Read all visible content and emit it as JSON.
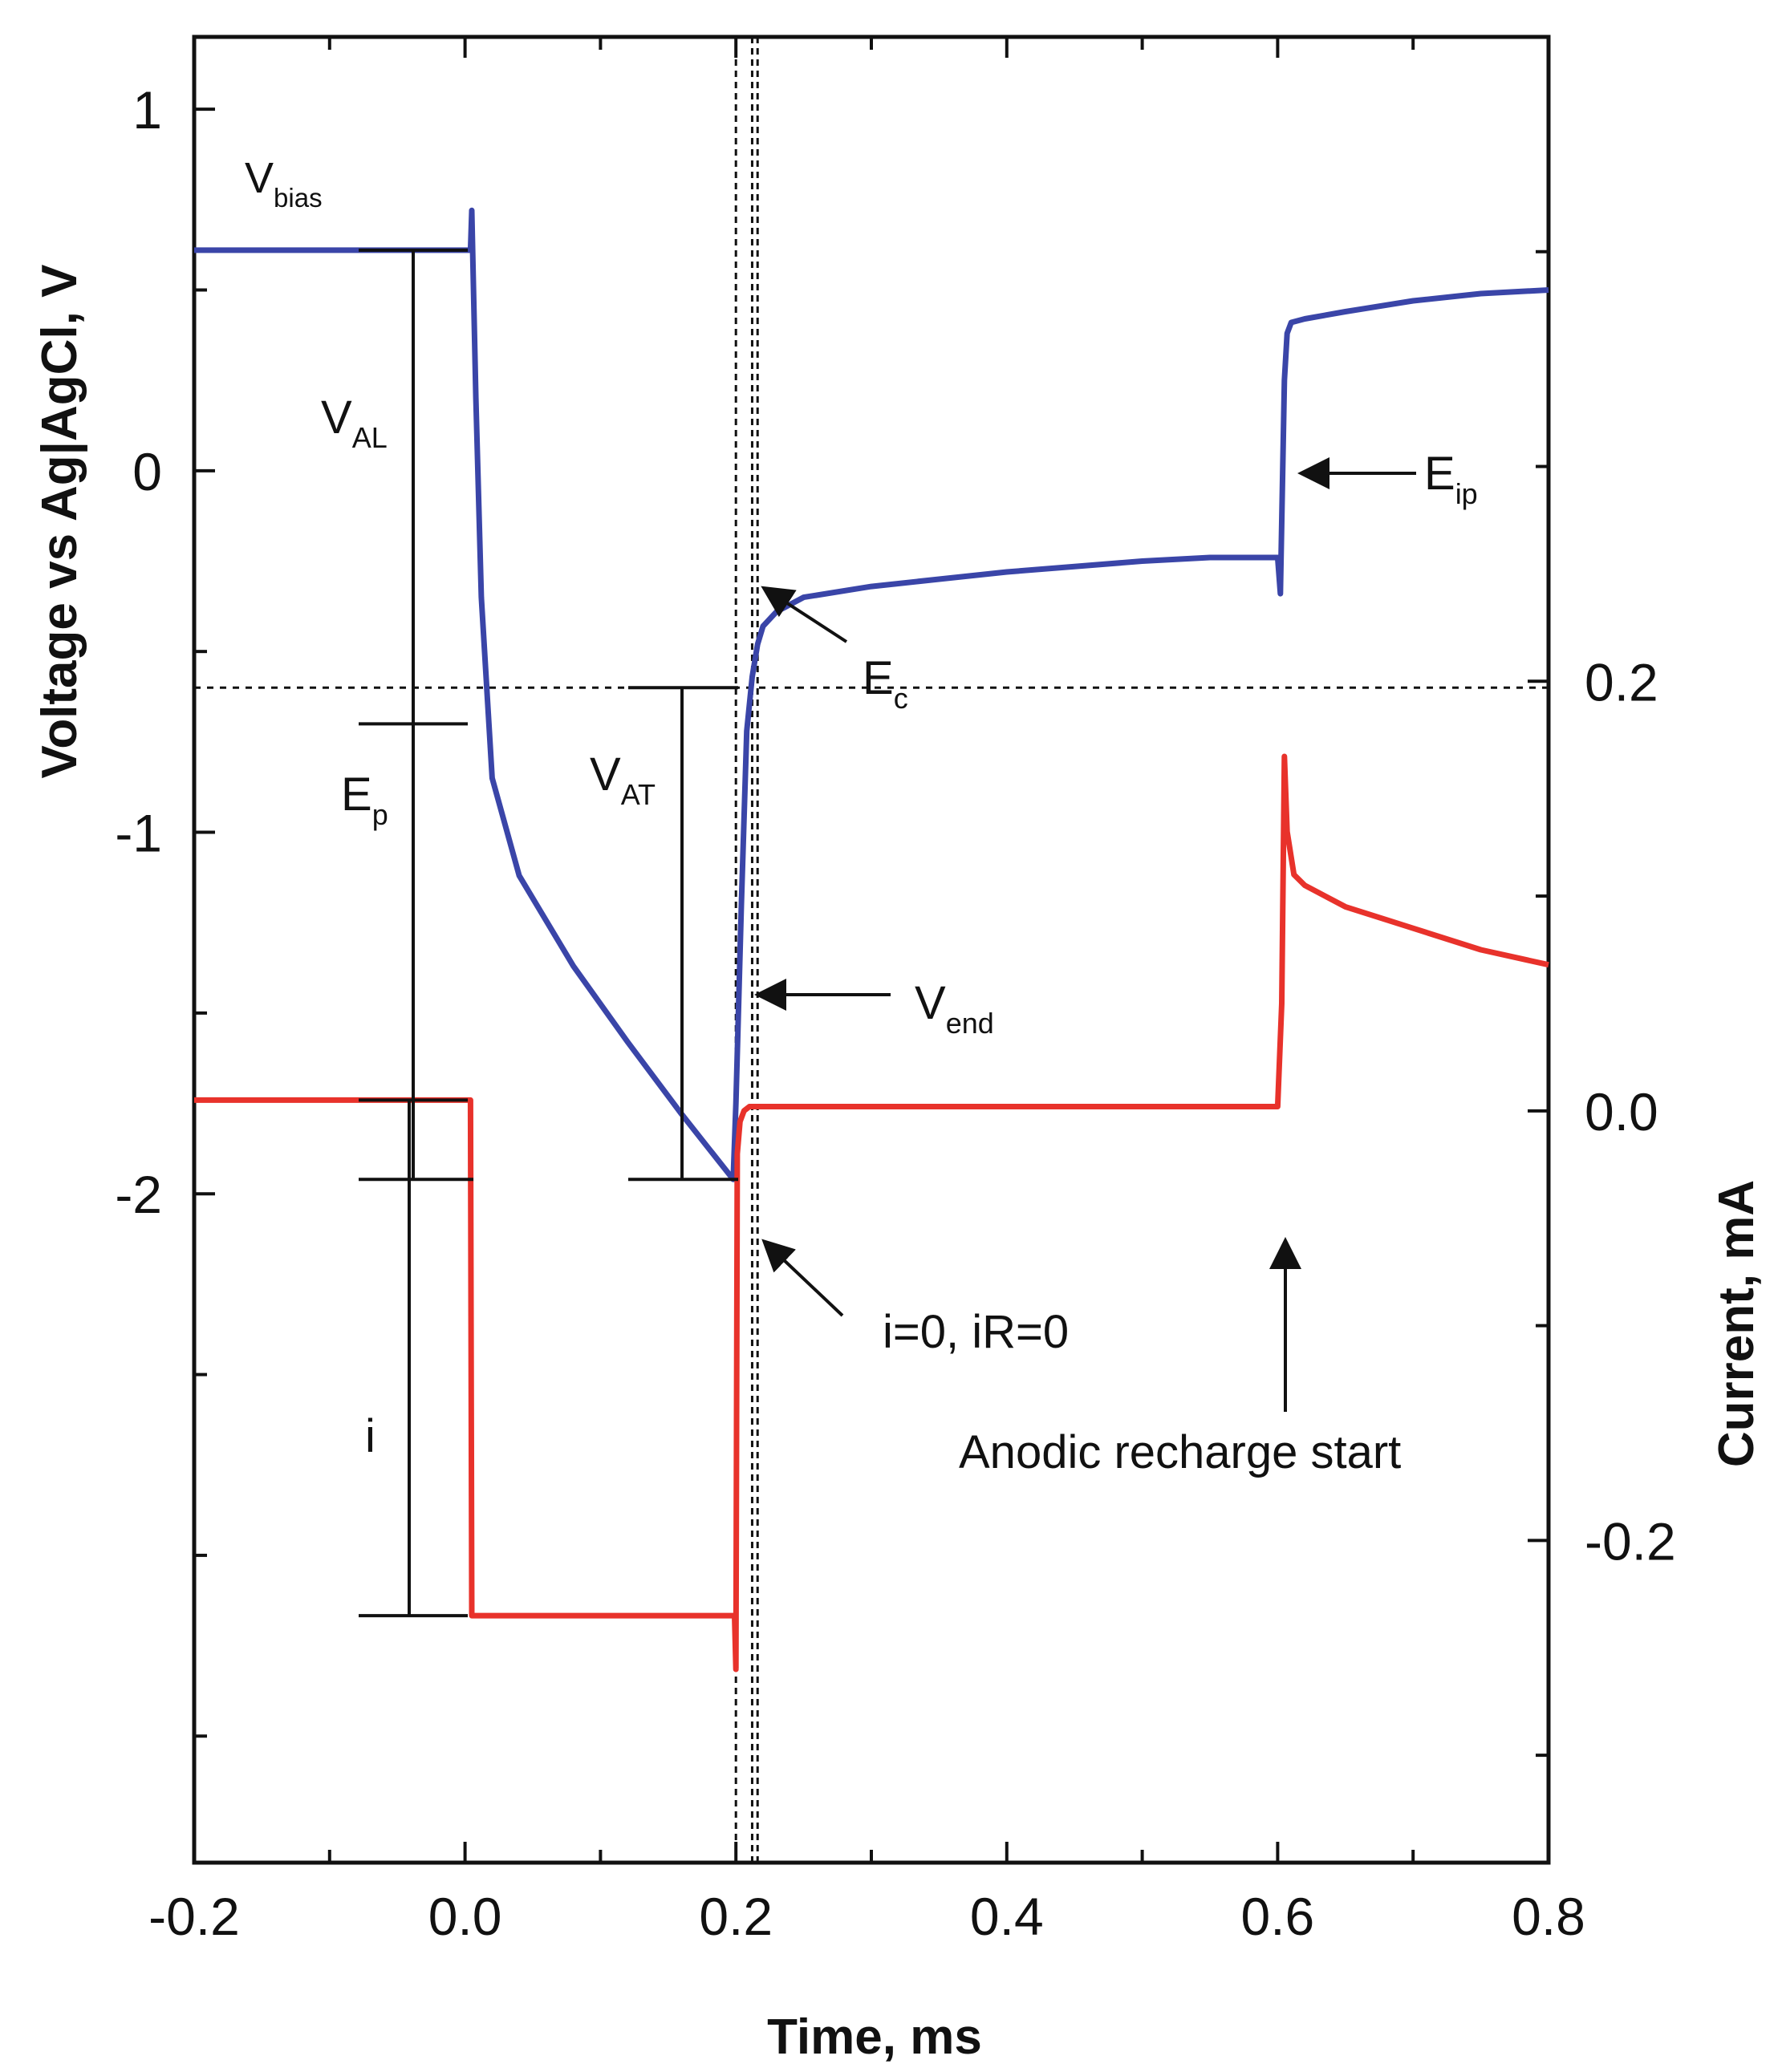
{
  "chart_data": {
    "type": "line",
    "xlabel": "Time, ms",
    "ylabel": "Voltage vs Ag|AgCl, V",
    "y2label": "Current, mA",
    "xlim": [
      -0.2,
      0.8
    ],
    "ylim": [
      -3.85,
      1.2
    ],
    "y2lim": [
      -0.35,
      0.5
    ],
    "xticks": [
      -0.2,
      0.0,
      0.2,
      0.4,
      0.6,
      0.8
    ],
    "xtick_labels": [
      "-0.2",
      "0.0",
      "0.2",
      "0.4",
      "0.6",
      "0.8"
    ],
    "yticks": [
      -2,
      -1,
      0,
      1
    ],
    "ytick_labels": [
      "-2",
      "-1",
      "0",
      "1"
    ],
    "y2ticks": [
      -0.2,
      0.0,
      0.2
    ],
    "y2tick_labels": [
      "-0.2",
      "0.0",
      "0.2"
    ],
    "grid": false,
    "series": [
      {
        "axis": "left",
        "color": "#3a45a8",
        "x": [
          -0.2,
          -0.1,
          0.0,
          0.004,
          0.005,
          0.008,
          0.012,
          0.02,
          0.04,
          0.08,
          0.12,
          0.16,
          0.198,
          0.2,
          0.204,
          0.208,
          0.212,
          0.216,
          0.22,
          0.23,
          0.25,
          0.3,
          0.35,
          0.4,
          0.45,
          0.5,
          0.55,
          0.6,
          0.602,
          0.605,
          0.607,
          0.61,
          0.62,
          0.65,
          0.7,
          0.75,
          0.8
        ],
        "y": [
          0.61,
          0.61,
          0.61,
          0.61,
          0.72,
          0.2,
          -0.35,
          -0.85,
          -1.12,
          -1.37,
          -1.58,
          -1.78,
          -1.96,
          -1.75,
          -1.2,
          -0.72,
          -0.57,
          -0.48,
          -0.43,
          -0.39,
          -0.35,
          -0.32,
          -0.3,
          -0.28,
          -0.265,
          -0.25,
          -0.24,
          -0.24,
          -0.34,
          0.25,
          0.38,
          0.41,
          0.42,
          0.44,
          0.47,
          0.49,
          0.5
        ]
      },
      {
        "axis": "right",
        "color": "#e8322b",
        "x": [
          -0.2,
          -0.1,
          0.0,
          0.004,
          0.005,
          0.006,
          0.05,
          0.1,
          0.15,
          0.199,
          0.2,
          0.201,
          0.203,
          0.206,
          0.21,
          0.25,
          0.3,
          0.4,
          0.5,
          0.6,
          0.603,
          0.605,
          0.607,
          0.612,
          0.62,
          0.65,
          0.7,
          0.75,
          0.8
        ],
        "y": [
          0.005,
          0.005,
          0.005,
          0.005,
          -0.235,
          -0.235,
          -0.235,
          -0.235,
          -0.235,
          -0.235,
          -0.26,
          -0.02,
          -0.005,
          0.0,
          0.002,
          0.002,
          0.002,
          0.002,
          0.002,
          0.002,
          0.05,
          0.165,
          0.13,
          0.11,
          0.105,
          0.095,
          0.085,
          0.075,
          0.068
        ]
      }
    ],
    "annotations": [
      {
        "id": "vbias",
        "main": "V",
        "sub": "bias"
      },
      {
        "id": "val",
        "main": "V",
        "sub": "AL"
      },
      {
        "id": "ep",
        "main": "E",
        "sub": "p"
      },
      {
        "id": "vat",
        "main": "V",
        "sub": "AT"
      },
      {
        "id": "ec",
        "main": "E",
        "sub": "c"
      },
      {
        "id": "eip",
        "main": "E",
        "sub": "ip"
      },
      {
        "id": "vend",
        "main": "V",
        "sub": "end"
      },
      {
        "id": "i",
        "main": "i",
        "sub": ""
      },
      {
        "id": "izero",
        "main": "i=0, iR=0",
        "sub": ""
      },
      {
        "id": "anodic",
        "main": "Anodic recharge start",
        "sub": ""
      }
    ],
    "reference_lines": {
      "horizontal_voltage": -0.6,
      "vertical_times": [
        0.2,
        0.212,
        0.216
      ]
    }
  }
}
